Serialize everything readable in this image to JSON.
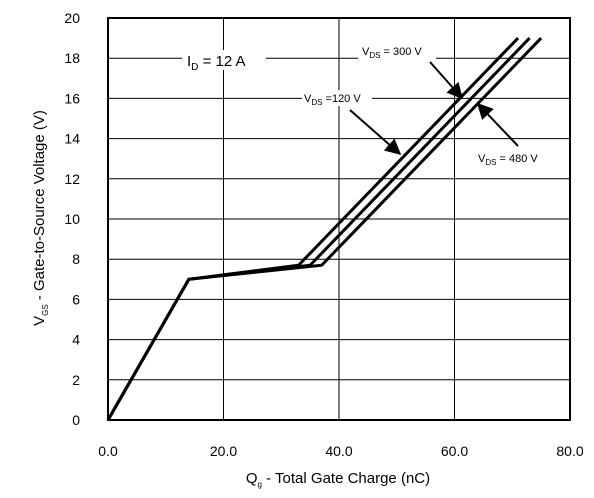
{
  "chart_data": {
    "type": "line",
    "xlabel": {
      "main": "Q",
      "sub": "g",
      "rest": " - Total Gate Charge (nC)"
    },
    "ylabel": {
      "main": "V",
      "sub": "GS",
      "rest": " - Gate-to-Source Voltage (V)"
    },
    "xlim": [
      0,
      80
    ],
    "ylim": [
      0,
      20
    ],
    "xticks": [
      0,
      20,
      40,
      60,
      80
    ],
    "xtick_labels": [
      "0.0",
      "20.0",
      "40.0",
      "60.0",
      "80.0"
    ],
    "yticks": [
      0,
      2,
      4,
      6,
      8,
      10,
      12,
      14,
      16,
      18,
      20
    ],
    "ytick_labels": [
      "0",
      "2",
      "4",
      "6",
      "8",
      "10",
      "12",
      "14",
      "16",
      "18",
      "20"
    ],
    "grid": true,
    "series": [
      {
        "name": "VDS=120 V",
        "x": [
          0,
          14,
          33,
          71
        ],
        "y": [
          0,
          7.0,
          7.7,
          19
        ]
      },
      {
        "name": "VDS=300 V",
        "x": [
          0,
          14,
          35,
          73
        ],
        "y": [
          0,
          7.0,
          7.7,
          19
        ]
      },
      {
        "name": "VDS=480 V",
        "x": [
          0,
          14,
          37,
          75
        ],
        "y": [
          0,
          7.0,
          7.7,
          19
        ]
      }
    ],
    "annotations": {
      "current": {
        "main": "I",
        "sub": "D",
        "rest": " = 12 A"
      },
      "v120": {
        "main": "V",
        "sub": "DS",
        "rest": " =120 V"
      },
      "v300": {
        "main": "V",
        "sub": "DS",
        "rest": " = 300 V"
      },
      "v480": {
        "main": "V",
        "sub": "DS",
        "rest": " = 480 V"
      }
    }
  }
}
